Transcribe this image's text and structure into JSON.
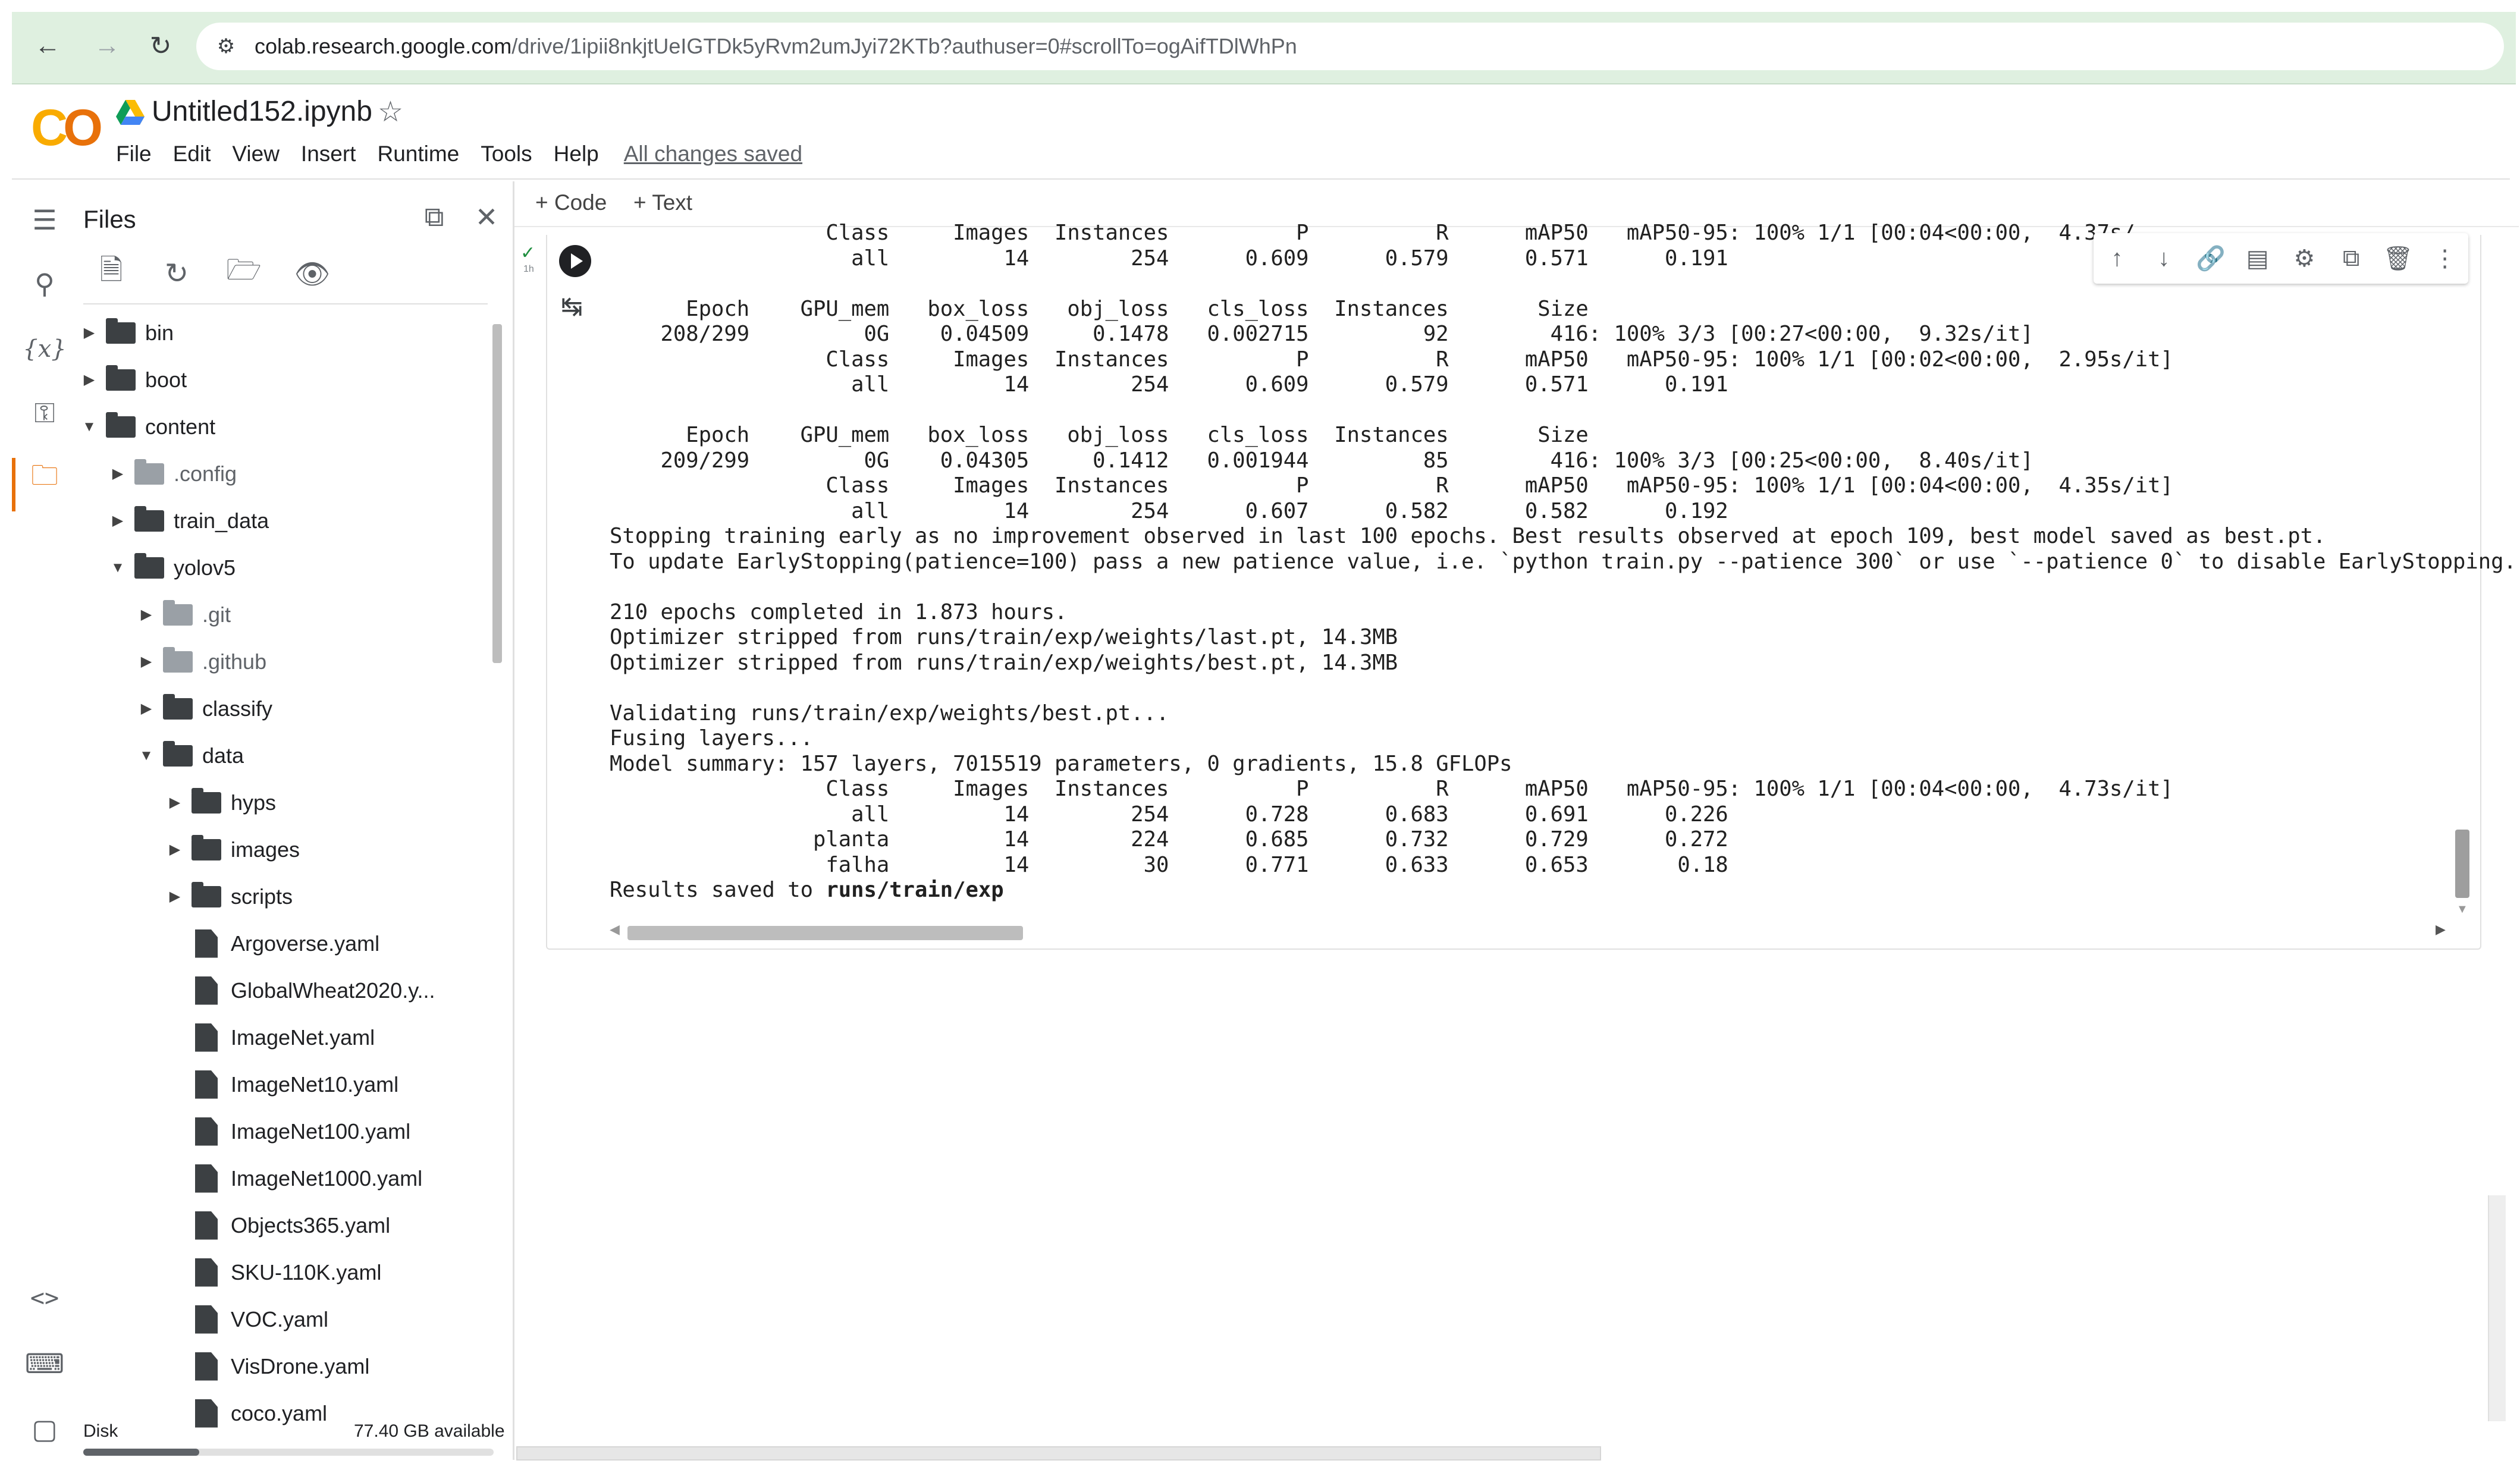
{
  "browser": {
    "url_host": "colab.research.google.com",
    "url_path": "/drive/1ipii8nkjtUeIGTDk5yRvm2umJyi72KTb?authuser=0#scrollTo=ogAifTDlWhPn",
    "icons": [
      "back-icon",
      "forward-icon",
      "reload-icon",
      "site-settings-icon"
    ]
  },
  "header": {
    "logo": "CO",
    "notebook_title": "Untitled152.ipynb",
    "menu": [
      "File",
      "Edit",
      "View",
      "Insert",
      "Runtime",
      "Tools",
      "Help"
    ],
    "save_status": "All changes saved"
  },
  "sidebar": {
    "title": "Files",
    "icons": [
      "toc-icon",
      "search-icon",
      "variables-icon",
      "key-icon",
      "folder-icon",
      "code-icon",
      "command-palette-icon",
      "terminal-icon"
    ],
    "toolbar_icons": [
      "upload-file-icon",
      "refresh-icon",
      "drive-folder-icon",
      "eye-icon"
    ],
    "tree": [
      {
        "name": "bin",
        "type": "folder",
        "depth": 0,
        "expanded": false
      },
      {
        "name": "boot",
        "type": "folder",
        "depth": 0,
        "expanded": false
      },
      {
        "name": "content",
        "type": "folder",
        "depth": 0,
        "expanded": true
      },
      {
        "name": ".config",
        "type": "folder-dim",
        "depth": 1,
        "expanded": false
      },
      {
        "name": "train_data",
        "type": "folder",
        "depth": 1,
        "expanded": false
      },
      {
        "name": "yolov5",
        "type": "folder",
        "depth": 1,
        "expanded": true
      },
      {
        "name": ".git",
        "type": "folder-dim",
        "depth": 2,
        "expanded": false
      },
      {
        "name": ".github",
        "type": "folder-dim",
        "depth": 2,
        "expanded": false
      },
      {
        "name": "classify",
        "type": "folder",
        "depth": 2,
        "expanded": false
      },
      {
        "name": "data",
        "type": "folder",
        "depth": 2,
        "expanded": true
      },
      {
        "name": "hyps",
        "type": "folder",
        "depth": 3,
        "expanded": false
      },
      {
        "name": "images",
        "type": "folder",
        "depth": 3,
        "expanded": false
      },
      {
        "name": "scripts",
        "type": "folder",
        "depth": 3,
        "expanded": false
      },
      {
        "name": "Argoverse.yaml",
        "type": "file",
        "depth": 3
      },
      {
        "name": "GlobalWheat2020.y...",
        "type": "file",
        "depth": 3
      },
      {
        "name": "ImageNet.yaml",
        "type": "file",
        "depth": 3
      },
      {
        "name": "ImageNet10.yaml",
        "type": "file",
        "depth": 3
      },
      {
        "name": "ImageNet100.yaml",
        "type": "file",
        "depth": 3
      },
      {
        "name": "ImageNet1000.yaml",
        "type": "file",
        "depth": 3
      },
      {
        "name": "Objects365.yaml",
        "type": "file",
        "depth": 3
      },
      {
        "name": "SKU-110K.yaml",
        "type": "file",
        "depth": 3
      },
      {
        "name": "VOC.yaml",
        "type": "file",
        "depth": 3
      },
      {
        "name": "VisDrone.yaml",
        "type": "file",
        "depth": 3
      },
      {
        "name": "coco.yaml",
        "type": "file",
        "depth": 3
      }
    ],
    "disk_label": "Disk",
    "disk_available": "77.40 GB available"
  },
  "toolbar": {
    "add_code": "+ Code",
    "add_text": "+ Text"
  },
  "cell": {
    "status_time": "1h",
    "toolbar_icons": [
      "move-up-icon",
      "move-down-icon",
      "link-icon",
      "comment-icon",
      "settings-icon",
      "mirror-cell-icon",
      "delete-icon",
      "more-icon"
    ],
    "output_lines": [
      "                 Class     Images  Instances          P          R      mAP50   mAP50-95: 100% 1/1 [00:04<00:00,  4.37s/",
      "                   all         14        254      0.609      0.579      0.571      0.191",
      "",
      "      Epoch    GPU_mem   box_loss   obj_loss   cls_loss  Instances       Size",
      "    208/299         0G    0.04509     0.1478   0.002715         92        416: 100% 3/3 [00:27<00:00,  9.32s/it]",
      "                 Class     Images  Instances          P          R      mAP50   mAP50-95: 100% 1/1 [00:02<00:00,  2.95s/it]",
      "                   all         14        254      0.609      0.579      0.571      0.191",
      "",
      "      Epoch    GPU_mem   box_loss   obj_loss   cls_loss  Instances       Size",
      "    209/299         0G    0.04305     0.1412   0.001944         85        416: 100% 3/3 [00:25<00:00,  8.40s/it]",
      "                 Class     Images  Instances          P          R      mAP50   mAP50-95: 100% 1/1 [00:04<00:00,  4.35s/it]",
      "                   all         14        254      0.607      0.582      0.582      0.192",
      "Stopping training early as no improvement observed in last 100 epochs. Best results observed at epoch 109, best model saved as best.pt.",
      "To update EarlyStopping(patience=100) pass a new patience value, i.e. `python train.py --patience 300` or use `--patience 0` to disable EarlyStopping.",
      "",
      "210 epochs completed in 1.873 hours.",
      "Optimizer stripped from runs/train/exp/weights/last.pt, 14.3MB",
      "Optimizer stripped from runs/train/exp/weights/best.pt, 14.3MB",
      "",
      "Validating runs/train/exp/weights/best.pt...",
      "Fusing layers...",
      "Model summary: 157 layers, 7015519 parameters, 0 gradients, 15.8 GFLOPs",
      "                 Class     Images  Instances          P          R      mAP50   mAP50-95: 100% 1/1 [00:04<00:00,  4.73s/it]",
      "                   all         14        254      0.728      0.683      0.691      0.226",
      "                planta         14        224      0.685      0.732      0.729      0.272",
      "                 falha         14         30      0.771      0.633      0.653       0.18"
    ],
    "results_prefix": "Results saved to ",
    "results_path": "runs/train/exp"
  },
  "colors": {
    "browser_bar": "#dff0e0",
    "logo_yellow": "#f9ab00",
    "logo_orange": "#e8710a",
    "success_check": "#1e8e3e"
  }
}
